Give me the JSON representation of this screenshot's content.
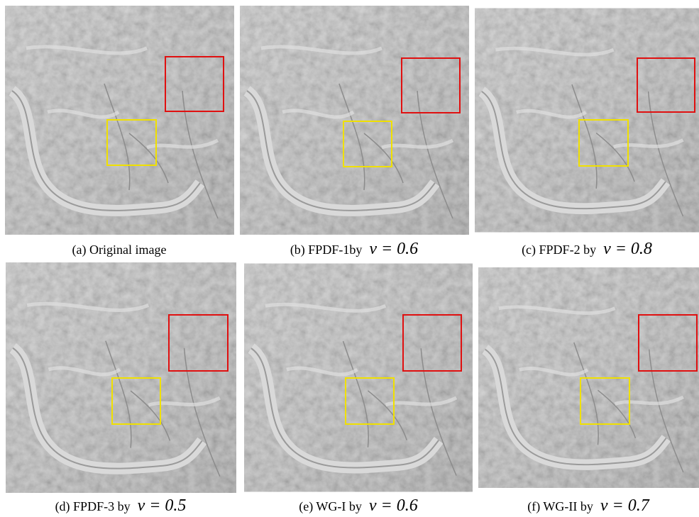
{
  "panels": [
    {
      "caption": "(a) Original image"
    },
    {
      "caption": "(b) FPDF-1by",
      "math": "v = 0.6"
    },
    {
      "caption": "(c) FPDF-2 by",
      "math": "v = 0.8"
    },
    {
      "caption": "(d) FPDF-3 by",
      "math": "v = 0.5"
    },
    {
      "caption": "(e) WG-I by",
      "math": "v = 0.6"
    },
    {
      "caption": "(f) WG-II by",
      "math": "v = 0.7"
    }
  ]
}
